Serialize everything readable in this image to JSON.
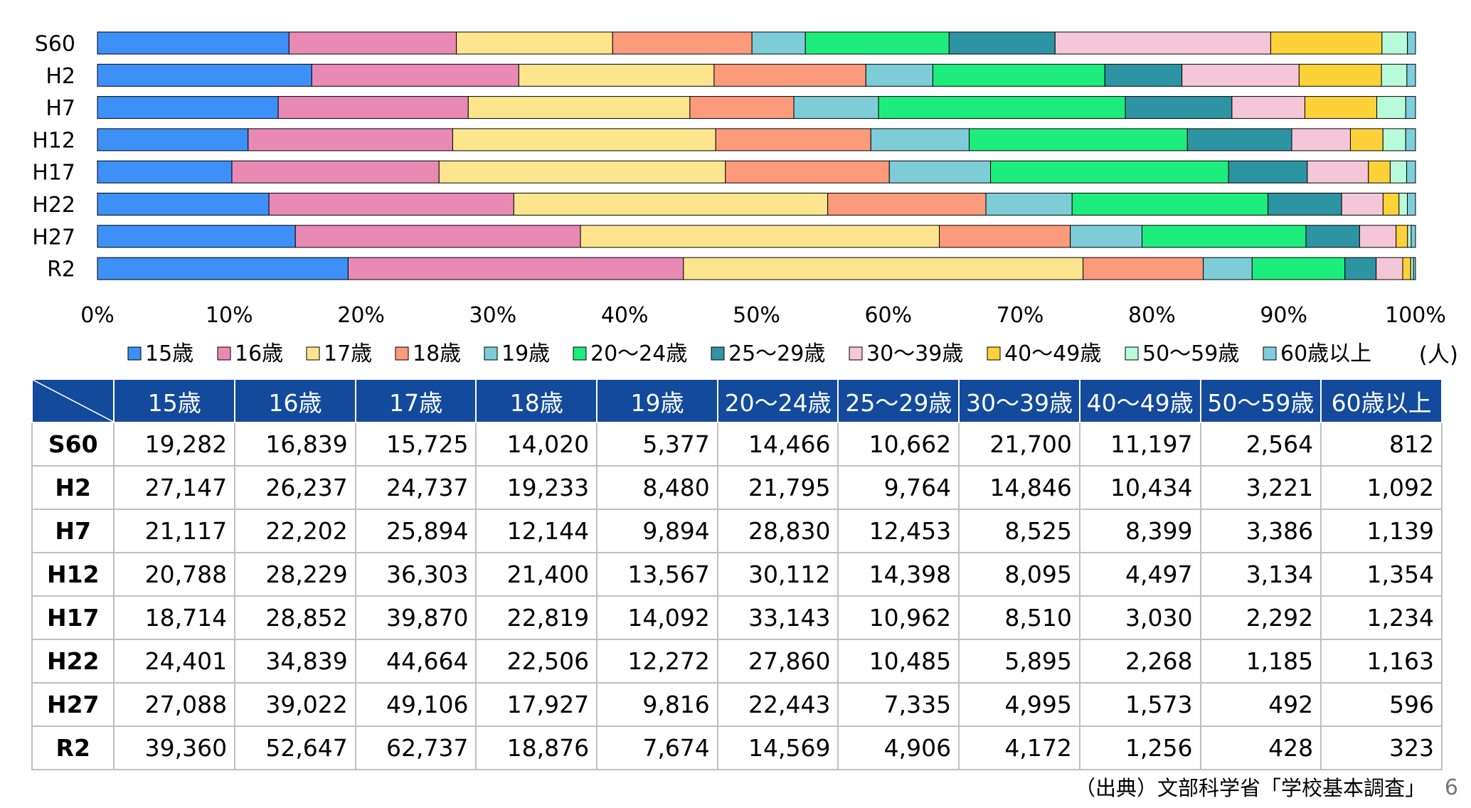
{
  "chart_data": {
    "type": "bar",
    "orientation": "horizontal",
    "stacked": "percent",
    "categories": [
      "S60",
      "H2",
      "H7",
      "H12",
      "H17",
      "H22",
      "H27",
      "R2"
    ],
    "x_tick_labels": [
      "0%",
      "10%",
      "20%",
      "30%",
      "40%",
      "50%",
      "60%",
      "70%",
      "80%",
      "90%",
      "100%"
    ],
    "xlim": [
      0,
      100
    ],
    "legend_placement": "bottom",
    "unit_label": "(人)",
    "series": [
      {
        "name": "15歳",
        "color": "#3d90f7",
        "values": [
          19282,
          27147,
          21117,
          20788,
          18714,
          24401,
          27088,
          39360
        ]
      },
      {
        "name": "16歳",
        "color": "#e88ab4",
        "values": [
          16839,
          26237,
          22202,
          28229,
          28852,
          34839,
          39022,
          52647
        ]
      },
      {
        "name": "17歳",
        "color": "#fde58e",
        "values": [
          15725,
          24737,
          25894,
          36303,
          39870,
          44664,
          49106,
          62737
        ]
      },
      {
        "name": "18歳",
        "color": "#fc9a7c",
        "values": [
          14020,
          19233,
          12144,
          21400,
          22819,
          22506,
          17927,
          18876
        ]
      },
      {
        "name": "19歳",
        "color": "#7ccdd8",
        "values": [
          5377,
          8480,
          9894,
          13567,
          14092,
          12272,
          9816,
          7674
        ]
      },
      {
        "name": "20～24歳",
        "color": "#1ded7c",
        "values": [
          14466,
          21795,
          28830,
          30112,
          33143,
          27860,
          22443,
          14569
        ]
      },
      {
        "name": "25～29歳",
        "color": "#2d94a3",
        "values": [
          10662,
          9764,
          12453,
          14398,
          10962,
          10485,
          7335,
          4906
        ]
      },
      {
        "name": "30～39歳",
        "color": "#f5c6d8",
        "values": [
          21700,
          14846,
          8525,
          8095,
          8510,
          5895,
          4995,
          4172
        ]
      },
      {
        "name": "40～49歳",
        "color": "#fcd238",
        "values": [
          11197,
          10434,
          8399,
          4497,
          3030,
          2268,
          1573,
          1256
        ]
      },
      {
        "name": "50～59歳",
        "color": "#b8fbdb",
        "values": [
          2564,
          3221,
          3386,
          3134,
          2292,
          1185,
          492,
          428
        ]
      },
      {
        "name": "60歳以上",
        "color": "#7ecedd",
        "values": [
          812,
          1092,
          1139,
          1354,
          1234,
          1163,
          596,
          323
        ]
      }
    ]
  },
  "table": {
    "headers": [
      "15歳",
      "16歳",
      "17歳",
      "18歳",
      "19歳",
      "20～24歳",
      "25～29歳",
      "30～39歳",
      "40～49歳",
      "50～59歳",
      "60歳以上"
    ],
    "rows": [
      {
        "label": "S60",
        "cells": [
          "19,282",
          "16,839",
          "15,725",
          "14,020",
          "5,377",
          "14,466",
          "10,662",
          "21,700",
          "11,197",
          "2,564",
          "812"
        ]
      },
      {
        "label": "H2",
        "cells": [
          "27,147",
          "26,237",
          "24,737",
          "19,233",
          "8,480",
          "21,795",
          "9,764",
          "14,846",
          "10,434",
          "3,221",
          "1,092"
        ]
      },
      {
        "label": "H7",
        "cells": [
          "21,117",
          "22,202",
          "25,894",
          "12,144",
          "9,894",
          "28,830",
          "12,453",
          "8,525",
          "8,399",
          "3,386",
          "1,139"
        ]
      },
      {
        "label": "H12",
        "cells": [
          "20,788",
          "28,229",
          "36,303",
          "21,400",
          "13,567",
          "30,112",
          "14,398",
          "8,095",
          "4,497",
          "3,134",
          "1,354"
        ]
      },
      {
        "label": "H17",
        "cells": [
          "18,714",
          "28,852",
          "39,870",
          "22,819",
          "14,092",
          "33,143",
          "10,962",
          "8,510",
          "3,030",
          "2,292",
          "1,234"
        ]
      },
      {
        "label": "H22",
        "cells": [
          "24,401",
          "34,839",
          "44,664",
          "22,506",
          "12,272",
          "27,860",
          "10,485",
          "5,895",
          "2,268",
          "1,185",
          "1,163"
        ]
      },
      {
        "label": "H27",
        "cells": [
          "27,088",
          "39,022",
          "49,106",
          "17,927",
          "9,816",
          "22,443",
          "7,335",
          "4,995",
          "1,573",
          "492",
          "596"
        ]
      },
      {
        "label": "R2",
        "cells": [
          "39,360",
          "52,647",
          "62,737",
          "18,876",
          "7,674",
          "14,569",
          "4,906",
          "4,172",
          "1,256",
          "428",
          "323"
        ]
      }
    ]
  },
  "source": "（出典）文部科学省「学校基本調査」",
  "page_number": "6",
  "colors": {
    "table_header_bg": "#134a9c",
    "table_border": "#bfbfbf"
  }
}
